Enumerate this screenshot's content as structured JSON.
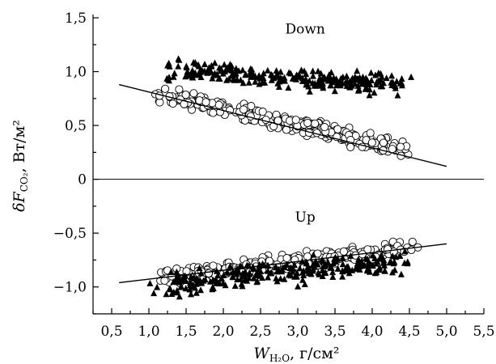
{
  "chart_data": {
    "type": "scatter",
    "x_axis": {
      "label_main": "W",
      "label_sub": "H₂O",
      "label_unit": ", г/см²",
      "range": [
        0.25,
        5.5
      ],
      "ticks": [
        0.5,
        1.0,
        1.5,
        2.0,
        2.5,
        3.0,
        3.5,
        4.0,
        4.5,
        5.0,
        5.5
      ],
      "tick_labels": [
        "0,5",
        "1,0",
        "1,5",
        "2,0",
        "2,5",
        "3,0",
        "3,5",
        "4,0",
        "4,5",
        "5,0",
        "5,5"
      ]
    },
    "y_axis": {
      "label_main": "δF",
      "label_sub": "CO₂",
      "label_unit": ", Вт/м²",
      "range": [
        -1.25,
        1.5
      ],
      "ticks": [
        -1.0,
        -0.5,
        0.0,
        0.5,
        1.0,
        1.5
      ],
      "tick_labels": [
        "−1,0",
        "−0,5",
        "0",
        "0,5",
        "1,0",
        "1,5"
      ]
    },
    "annotations": [
      {
        "text": "Down",
        "x": 3.1,
        "y": 1.4
      },
      {
        "text": "Up",
        "x": 3.1,
        "y": -0.35
      }
    ],
    "zero_line": true,
    "grid": false,
    "groups": [
      {
        "group": "Down",
        "series": [
          {
            "marker": "filled-triangle",
            "x_range": [
              1.0,
              4.65
            ],
            "y_center": [
              1.03,
              0.86
            ],
            "y_spread": 0.09
          },
          {
            "marker": "open-circle",
            "x_range": [
              0.95,
              4.65
            ],
            "y_center": [
              0.81,
              0.25
            ],
            "y_spread": 0.08
          }
        ],
        "fit_line": {
          "x": [
            0.6,
            5.0
          ],
          "y": [
            0.88,
            0.12
          ]
        }
      },
      {
        "group": "Up",
        "series": [
          {
            "marker": "open-circle",
            "x_range": [
              0.95,
              4.65
            ],
            "y_center": [
              -0.93,
              -0.63
            ],
            "y_spread": 0.07
          },
          {
            "marker": "filled-triangle",
            "x_range": [
              0.95,
              4.65
            ],
            "y_center": [
              -0.98,
              -0.75
            ],
            "y_spread": 0.11
          }
        ],
        "fit_line": {
          "x": [
            0.6,
            5.0
          ],
          "y": [
            -0.96,
            -0.6
          ]
        }
      }
    ]
  }
}
